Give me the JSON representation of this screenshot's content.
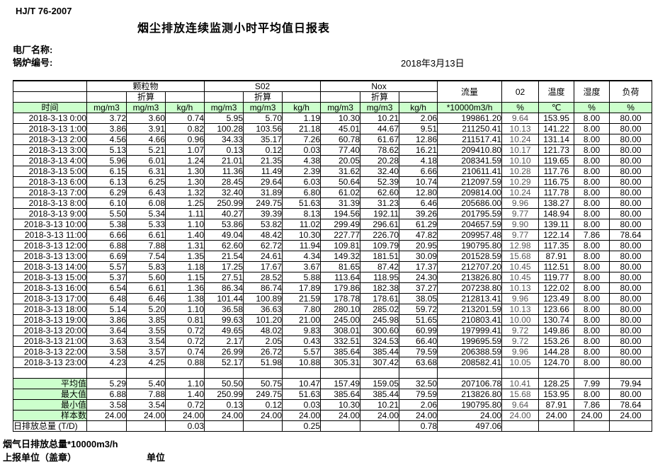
{
  "meta": {
    "standard": "HJ/T  76-2007",
    "title": "烟尘排放连续监测小时平均值日报表",
    "plant_label": "电厂名称:",
    "boiler_label": "锅炉编号:",
    "date": "2018年3月13日"
  },
  "colors": {
    "header_bg": "#ccffcc",
    "border": "#000000"
  },
  "table": {
    "header": {
      "time_label": "时间",
      "pm_label": "颗粒物",
      "so2_label": "S02",
      "nox_label": "Nox",
      "converted_label": "折算",
      "unit_mg": "mg/m3",
      "unit_kgh": "kg/h",
      "flow_label": "流量",
      "flow_unit": "*10000m3/h",
      "o2_label": "02",
      "temp_label": "温度",
      "temp_unit": "℃",
      "humidity_label": "湿度",
      "load_label": "负荷",
      "percent_unit": "%"
    },
    "rows": [
      {
        "time": "2018-3-13 0:00",
        "v": [
          "3.72",
          "3.60",
          "0.74",
          "5.95",
          "5.70",
          "1.19",
          "10.30",
          "10.21",
          "2.06",
          "199861.20",
          "9.64",
          "153.95",
          "8.00",
          "80.00"
        ]
      },
      {
        "time": "2018-3-13 1:00",
        "v": [
          "3.86",
          "3.91",
          "0.82",
          "100.28",
          "103.56",
          "21.18",
          "45.01",
          "44.67",
          "9.51",
          "211250.41",
          "10.13",
          "141.22",
          "8.00",
          "80.00"
        ]
      },
      {
        "time": "2018-3-13 2:00",
        "v": [
          "4.56",
          "4.66",
          "0.96",
          "34.33",
          "35.17",
          "7.26",
          "60.78",
          "61.67",
          "12.86",
          "211517.41",
          "10.24",
          "131.14",
          "8.00",
          "80.00"
        ]
      },
      {
        "time": "2018-3-13 3:00",
        "v": [
          "5.13",
          "5.21",
          "1.07",
          "0.13",
          "0.12",
          "0.03",
          "77.40",
          "78.62",
          "16.21",
          "209410.80",
          "10.17",
          "121.73",
          "8.00",
          "80.00"
        ]
      },
      {
        "time": "2018-3-13 4:00",
        "v": [
          "5.96",
          "6.01",
          "1.24",
          "21.01",
          "21.35",
          "4.38",
          "20.05",
          "20.28",
          "4.18",
          "208341.59",
          "10.10",
          "119.65",
          "8.00",
          "80.00"
        ]
      },
      {
        "time": "2018-3-13 5:00",
        "v": [
          "6.15",
          "6.31",
          "1.30",
          "11.36",
          "11.49",
          "2.39",
          "31.62",
          "32.40",
          "6.66",
          "210611.41",
          "10.28",
          "117.76",
          "8.00",
          "80.00"
        ]
      },
      {
        "time": "2018-3-13 6:00",
        "v": [
          "6.13",
          "6.25",
          "1.30",
          "28.45",
          "29.64",
          "6.03",
          "50.64",
          "52.39",
          "10.74",
          "212097.59",
          "10.29",
          "116.75",
          "8.00",
          "80.00"
        ]
      },
      {
        "time": "2018-3-13 7:00",
        "v": [
          "6.29",
          "6.43",
          "1.32",
          "32.40",
          "31.89",
          "6.80",
          "61.02",
          "62.60",
          "12.80",
          "209814.00",
          "10.24",
          "117.78",
          "8.00",
          "80.00"
        ]
      },
      {
        "time": "2018-3-13 8:00",
        "v": [
          "6.10",
          "6.08",
          "1.25",
          "250.99",
          "249.75",
          "51.63",
          "31.39",
          "31.23",
          "6.46",
          "205686.00",
          "9.96",
          "138.27",
          "8.00",
          "80.00"
        ]
      },
      {
        "time": "2018-3-13 9:00",
        "v": [
          "5.50",
          "5.34",
          "1.11",
          "40.27",
          "39.39",
          "8.13",
          "194.56",
          "192.11",
          "39.26",
          "201795.59",
          "9.77",
          "148.94",
          "8.00",
          "80.00"
        ]
      },
      {
        "time": "2018-3-13 10:00",
        "v": [
          "5.38",
          "5.33",
          "1.10",
          "53.86",
          "53.82",
          "11.02",
          "299.49",
          "296.61",
          "61.29",
          "204657.59",
          "9.90",
          "139.11",
          "8.00",
          "80.00"
        ]
      },
      {
        "time": "2018-3-13 11:00",
        "v": [
          "6.66",
          "6.61",
          "1.40",
          "49.04",
          "48.42",
          "10.30",
          "227.77",
          "226.70",
          "47.82",
          "209957.48",
          "9.77",
          "122.14",
          "7.86",
          "78.64"
        ]
      },
      {
        "time": "2018-3-13 12:00",
        "v": [
          "6.88",
          "7.88",
          "1.31",
          "62.60",
          "62.72",
          "11.94",
          "109.81",
          "109.79",
          "20.95",
          "190795.80",
          "12.98",
          "117.35",
          "8.00",
          "80.00"
        ]
      },
      {
        "time": "2018-3-13 13:00",
        "v": [
          "6.69",
          "7.54",
          "1.35",
          "21.54",
          "24.61",
          "4.34",
          "149.32",
          "181.51",
          "30.09",
          "201528.59",
          "15.68",
          "87.91",
          "8.00",
          "80.00"
        ]
      },
      {
        "time": "2018-3-13 14:00",
        "v": [
          "5.57",
          "5.83",
          "1.18",
          "17.25",
          "17.67",
          "3.67",
          "81.65",
          "87.42",
          "17.37",
          "212707.20",
          "10.45",
          "112.51",
          "8.00",
          "80.00"
        ]
      },
      {
        "time": "2018-3-13 15:00",
        "v": [
          "5.37",
          "5.60",
          "1.15",
          "27.51",
          "28.52",
          "5.88",
          "113.64",
          "118.95",
          "24.30",
          "213826.80",
          "10.45",
          "119.77",
          "8.00",
          "80.00"
        ]
      },
      {
        "time": "2018-3-13 16:00",
        "v": [
          "6.54",
          "6.61",
          "1.36",
          "86.34",
          "86.74",
          "17.89",
          "179.86",
          "182.38",
          "37.27",
          "207238.80",
          "10.13",
          "122.02",
          "8.00",
          "80.00"
        ]
      },
      {
        "time": "2018-3-13 17:00",
        "v": [
          "6.48",
          "6.46",
          "1.38",
          "101.44",
          "100.89",
          "21.59",
          "178.78",
          "178.61",
          "38.05",
          "212813.41",
          "9.96",
          "123.49",
          "8.00",
          "80.00"
        ]
      },
      {
        "time": "2018-3-13 18:00",
        "v": [
          "5.14",
          "5.20",
          "1.10",
          "36.58",
          "36.63",
          "7.80",
          "280.10",
          "285.02",
          "59.72",
          "213201.59",
          "10.13",
          "123.66",
          "8.00",
          "80.00"
        ]
      },
      {
        "time": "2018-3-13 19:00",
        "v": [
          "3.86",
          "3.85",
          "0.81",
          "99.63",
          "101.20",
          "21.00",
          "245.00",
          "245.98",
          "51.65",
          "210803.41",
          "10.00",
          "130.74",
          "8.00",
          "80.00"
        ]
      },
      {
        "time": "2018-3-13 20:00",
        "v": [
          "3.64",
          "3.55",
          "0.72",
          "49.65",
          "48.02",
          "9.83",
          "308.01",
          "300.60",
          "60.99",
          "197999.41",
          "9.72",
          "149.86",
          "8.00",
          "80.00"
        ]
      },
      {
        "time": "2018-3-13 21:00",
        "v": [
          "3.63",
          "3.54",
          "0.72",
          "2.17",
          "2.05",
          "0.43",
          "332.51",
          "324.53",
          "66.40",
          "199695.59",
          "9.72",
          "153.26",
          "8.00",
          "80.00"
        ]
      },
      {
        "time": "2018-3-13 22:00",
        "v": [
          "3.58",
          "3.57",
          "0.74",
          "26.99",
          "26.72",
          "5.57",
          "385.64",
          "385.44",
          "79.59",
          "206388.59",
          "9.96",
          "144.28",
          "8.00",
          "80.00"
        ]
      },
      {
        "time": "2018-3-13 23:00",
        "v": [
          "4.23",
          "4.25",
          "0.88",
          "52.17",
          "51.98",
          "10.88",
          "305.31",
          "307.42",
          "63.68",
          "208582.41",
          "10.05",
          "124.70",
          "8.00",
          "80.00"
        ]
      }
    ],
    "summary": [
      {
        "label": "平均值",
        "v": [
          "5.29",
          "5.40",
          "1.10",
          "50.50",
          "50.75",
          "10.47",
          "157.49",
          "159.05",
          "32.50",
          "207106.78",
          "10.41",
          "128.25",
          "7.99",
          "79.94"
        ]
      },
      {
        "label": "最大值",
        "v": [
          "6.88",
          "7.88",
          "1.40",
          "250.99",
          "249.75",
          "51.63",
          "385.64",
          "385.44",
          "79.59",
          "213826.80",
          "15.68",
          "153.95",
          "8.00",
          "80.00"
        ]
      },
      {
        "label": "最小值",
        "v": [
          "3.58",
          "3.54",
          "0.72",
          "0.13",
          "0.12",
          "0.03",
          "10.30",
          "10.21",
          "2.06",
          "190795.80",
          "9.64",
          "87.91",
          "7.86",
          "78.64"
        ]
      },
      {
        "label": "样本数",
        "v": [
          "24.00",
          "24.00",
          "24.00",
          "24.00",
          "24.00",
          "24.00",
          "24.00",
          "24.00",
          "24.00",
          "24.00",
          "24.00",
          "24.00",
          "24.00",
          "24.00"
        ]
      }
    ],
    "total": {
      "label": "日排放总量 (T/D)",
      "v": [
        "",
        "",
        "0.03",
        "",
        "",
        "0.25",
        "",
        "",
        "0.78",
        "497.06",
        "",
        "",
        "",
        ""
      ]
    }
  },
  "footer": {
    "note": "烟气日排放总量*10000m3/h",
    "report_unit": "上报单位（盖章）",
    "unit": "单位"
  }
}
